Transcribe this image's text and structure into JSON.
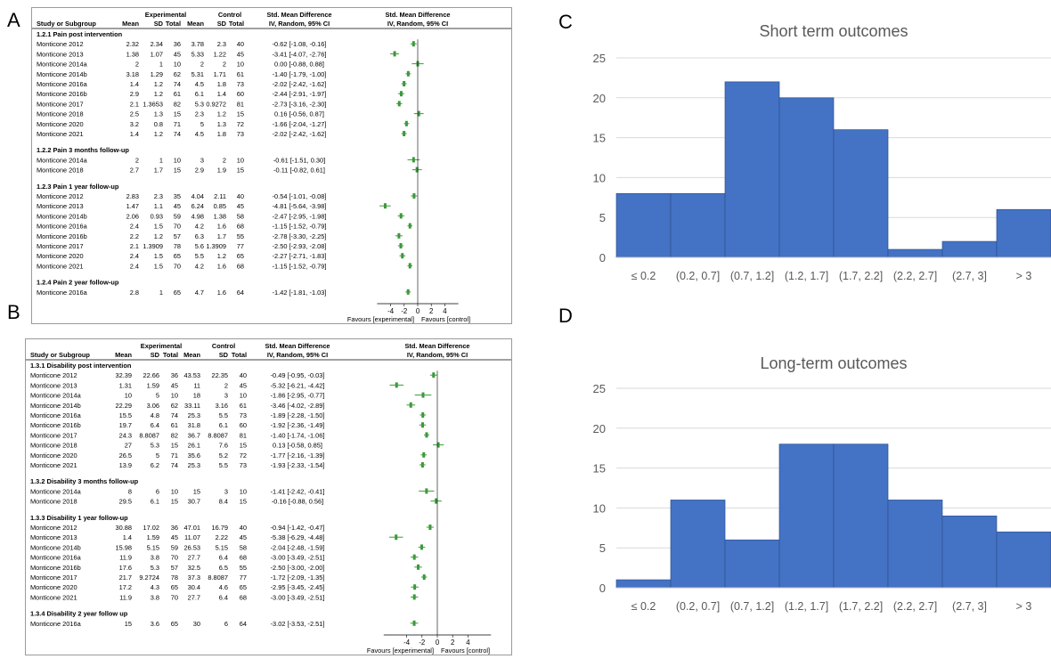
{
  "panels": {
    "a": "A",
    "b": "B",
    "c": "C",
    "d": "D"
  },
  "forest_headers": {
    "experimental": "Experimental",
    "control": "Control",
    "smd": "Std. Mean Difference",
    "smd_sub": "IV, Random, 95% CI",
    "study": "Study or Subgroup",
    "mean": "Mean",
    "sd": "SD",
    "total": "Total"
  },
  "forest_a_footer": {
    "left": "Favours [experimental]",
    "right": "Favours [control]"
  },
  "forest_b_footer": {
    "left": "Favours [experimental]",
    "right": "Favours [control]"
  },
  "histogram_colors": {
    "bar": "#4472C4",
    "grid": "#d9d9d9",
    "text": "#595959"
  },
  "forest_colors": {
    "marker": "#3a9a3a"
  },
  "chart_data": [
    {
      "type": "table",
      "panel": "A",
      "xaxis_ticks": [
        "-4",
        "-2",
        "0",
        "2",
        "4"
      ],
      "xlim": [
        -6,
        6
      ],
      "groups": [
        {
          "title": "1.2.1 Pain post intervention",
          "rows": [
            [
              "Monticone 2012",
              "2.32",
              "2.34",
              "36",
              "3.78",
              "2.3",
              "40",
              "-0.62 [-1.08, -0.16]",
              -0.62,
              -1.08,
              -0.16
            ],
            [
              "Monticone 2013",
              "1.38",
              "1.07",
              "45",
              "5.33",
              "1.22",
              "45",
              "-3.41 [-4.07, -2.76]",
              -3.41,
              -4.07,
              -2.76
            ],
            [
              "Monticone 2014a",
              "2",
              "1",
              "10",
              "2",
              "2",
              "10",
              "0.00 [-0.88, 0.88]",
              0.0,
              -0.88,
              0.88
            ],
            [
              "Monticone 2014b",
              "3.18",
              "1.29",
              "62",
              "5.31",
              "1.71",
              "61",
              "-1.40 [-1.79, -1.00]",
              -1.4,
              -1.79,
              -1.0
            ],
            [
              "Monticone 2016a",
              "1.4",
              "1.2",
              "74",
              "4.5",
              "1.8",
              "73",
              "-2.02 [-2.42, -1.62]",
              -2.02,
              -2.42,
              -1.62
            ],
            [
              "Monticone 2016b",
              "2.9",
              "1.2",
              "61",
              "6.1",
              "1.4",
              "60",
              "-2.44 [-2.91, -1.97]",
              -2.44,
              -2.91,
              -1.97
            ],
            [
              "Monticone 2017",
              "2.1",
              "1.3653",
              "82",
              "5.3",
              "0.9272",
              "81",
              "-2.73 [-3.16, -2.30]",
              -2.73,
              -3.16,
              -2.3
            ],
            [
              "Monticone 2018",
              "2.5",
              "1.3",
              "15",
              "2.3",
              "1.2",
              "15",
              "0.16 [-0.56, 0.87]",
              0.16,
              -0.56,
              0.87
            ],
            [
              "Monticone 2020",
              "3.2",
              "0.8",
              "71",
              "5",
              "1.3",
              "72",
              "-1.66 [-2.04, -1.27]",
              -1.66,
              -2.04,
              -1.27
            ],
            [
              "Monticone 2021",
              "1.4",
              "1.2",
              "74",
              "4.5",
              "1.8",
              "73",
              "-2.02 [-2.42, -1.62]",
              -2.02,
              -2.42,
              -1.62
            ]
          ]
        },
        {
          "title": "1.2.2 Pain 3 months follow-up",
          "rows": [
            [
              "Monticone 2014a",
              "2",
              "1",
              "10",
              "3",
              "2",
              "10",
              "-0.61 [-1.51, 0.30]",
              -0.61,
              -1.51,
              0.3
            ],
            [
              "Monticone 2018",
              "2.7",
              "1.7",
              "15",
              "2.9",
              "1.9",
              "15",
              "-0.11 [-0.82, 0.61]",
              -0.11,
              -0.82,
              0.61
            ]
          ]
        },
        {
          "title": "1.2.3 Pain 1 year follow-up",
          "rows": [
            [
              "Monticone 2012",
              "2.83",
              "2.3",
              "35",
              "4.04",
              "2.11",
              "40",
              "-0.54 [-1.01, -0.08]",
              -0.54,
              -1.01,
              -0.08
            ],
            [
              "Monticone 2013",
              "1.47",
              "1.1",
              "45",
              "6.24",
              "0.85",
              "45",
              "-4.81 [-5.64, -3.98]",
              -4.81,
              -5.64,
              -3.98
            ],
            [
              "Monticone 2014b",
              "2.06",
              "0.93",
              "59",
              "4.98",
              "1.38",
              "58",
              "-2.47 [-2.95, -1.98]",
              -2.47,
              -2.95,
              -1.98
            ],
            [
              "Monticone 2016a",
              "2.4",
              "1.5",
              "70",
              "4.2",
              "1.6",
              "68",
              "-1.15 [-1.52, -0.79]",
              -1.15,
              -1.52,
              -0.79
            ],
            [
              "Monticone 2016b",
              "2.2",
              "1.2",
              "57",
              "6.3",
              "1.7",
              "55",
              "-2.78 [-3.30, -2.25]",
              -2.78,
              -3.3,
              -2.25
            ],
            [
              "Monticone 2017",
              "2.1",
              "1.3909",
              "78",
              "5.6",
              "1.3909",
              "77",
              "-2.50 [-2.93, -2.08]",
              -2.5,
              -2.93,
              -2.08
            ],
            [
              "Monticone 2020",
              "2.4",
              "1.5",
              "65",
              "5.5",
              "1.2",
              "65",
              "-2.27 [-2.71, -1.83]",
              -2.27,
              -2.71,
              -1.83
            ],
            [
              "Monticone 2021",
              "2.4",
              "1.5",
              "70",
              "4.2",
              "1.6",
              "68",
              "-1.15 [-1.52, -0.79]",
              -1.15,
              -1.52,
              -0.79
            ]
          ]
        },
        {
          "title": "1.2.4 Pain 2 year follow-up",
          "rows": [
            [
              "Monticone 2016a",
              "2.8",
              "1",
              "65",
              "4.7",
              "1.6",
              "64",
              "-1.42 [-1.81, -1.03]",
              -1.42,
              -1.81,
              -1.03
            ]
          ]
        }
      ]
    },
    {
      "type": "table",
      "panel": "B",
      "xaxis_ticks": [
        "-4",
        "-2",
        "0",
        "2",
        "4"
      ],
      "xlim": [
        -7,
        7
      ],
      "groups": [
        {
          "title": "1.3.1 Disability post intervention",
          "rows": [
            [
              "Monticone 2012",
              "32.39",
              "22.66",
              "36",
              "43.53",
              "22.35",
              "40",
              "-0.49 [-0.95, -0.03]",
              -0.49,
              -0.95,
              -0.03
            ],
            [
              "Monticone 2013",
              "1.31",
              "1.59",
              "45",
              "11",
              "2",
              "45",
              "-5.32 [-6.21, -4.42]",
              -5.32,
              -6.21,
              -4.42
            ],
            [
              "Monticone 2014a",
              "10",
              "5",
              "10",
              "18",
              "3",
              "10",
              "-1.86 [-2.95, -0.77]",
              -1.86,
              -2.95,
              -0.77
            ],
            [
              "Monticone 2014b",
              "22.29",
              "3.06",
              "62",
              "33.11",
              "3.16",
              "61",
              "-3.46 [-4.02, -2.89]",
              -3.46,
              -4.02,
              -2.89
            ],
            [
              "Monticone 2016a",
              "15.5",
              "4.8",
              "74",
              "25.3",
              "5.5",
              "73",
              "-1.89 [-2.28, -1.50]",
              -1.89,
              -2.28,
              -1.5
            ],
            [
              "Monticone 2016b",
              "19.7",
              "6.4",
              "61",
              "31.8",
              "6.1",
              "60",
              "-1.92 [-2.36, -1.49]",
              -1.92,
              -2.36,
              -1.49
            ],
            [
              "Monticone 2017",
              "24.3",
              "8.8087",
              "82",
              "36.7",
              "8.8087",
              "81",
              "-1.40 [-1.74, -1.06]",
              -1.4,
              -1.74,
              -1.06
            ],
            [
              "Monticone 2018",
              "27",
              "5.3",
              "15",
              "26.1",
              "7.6",
              "15",
              "0.13 [-0.58, 0.85]",
              0.13,
              -0.58,
              0.85
            ],
            [
              "Monticone 2020",
              "26.5",
              "5",
              "71",
              "35.6",
              "5.2",
              "72",
              "-1.77 [-2.16, -1.39]",
              -1.77,
              -2.16,
              -1.39
            ],
            [
              "Monticone 2021",
              "13.9",
              "6.2",
              "74",
              "25.3",
              "5.5",
              "73",
              "-1.93 [-2.33, -1.54]",
              -1.93,
              -2.33,
              -1.54
            ]
          ]
        },
        {
          "title": "1.3.2 Disability 3 months follow-up",
          "rows": [
            [
              "Monticone 2014a",
              "8",
              "6",
              "10",
              "15",
              "3",
              "10",
              "-1.41 [-2.42, -0.41]",
              -1.41,
              -2.42,
              -0.41
            ],
            [
              "Monticone 2018",
              "29.5",
              "6.1",
              "15",
              "30.7",
              "8.4",
              "15",
              "-0.16 [-0.88, 0.56]",
              -0.16,
              -0.88,
              0.56
            ]
          ]
        },
        {
          "title": "1.3.3 Disability 1 year follow-up",
          "rows": [
            [
              "Monticone 2012",
              "30.88",
              "17.02",
              "36",
              "47.01",
              "16.79",
              "40",
              "-0.94 [-1.42, -0.47]",
              -0.94,
              -1.42,
              -0.47
            ],
            [
              "Monticone 2013",
              "1.4",
              "1.59",
              "45",
              "11.07",
              "2.22",
              "45",
              "-5.38 [-6.29, -4.48]",
              -5.38,
              -6.29,
              -4.48
            ],
            [
              "Monticone 2014b",
              "15.98",
              "5.15",
              "59",
              "26.53",
              "5.15",
              "58",
              "-2.04 [-2.48, -1.59]",
              -2.04,
              -2.48,
              -1.59
            ],
            [
              "Monticone 2016a",
              "11.9",
              "3.8",
              "70",
              "27.7",
              "6.4",
              "68",
              "-3.00 [-3.49, -2.51]",
              -3.0,
              -3.49,
              -2.51
            ],
            [
              "Monticone 2016b",
              "17.6",
              "5.3",
              "57",
              "32.5",
              "6.5",
              "55",
              "-2.50 [-3.00, -2.00]",
              -2.5,
              -3.0,
              -2.0
            ],
            [
              "Monticone 2017",
              "21.7",
              "9.2724",
              "78",
              "37.3",
              "8.8087",
              "77",
              "-1.72 [-2.09, -1.35]",
              -1.72,
              -2.09,
              -1.35
            ],
            [
              "Monticone 2020",
              "17.2",
              "4.3",
              "65",
              "30.4",
              "4.6",
              "65",
              "-2.95 [-3.45, -2.45]",
              -2.95,
              -3.45,
              -2.45
            ],
            [
              "Monticone 2021",
              "11.9",
              "3.8",
              "70",
              "27.7",
              "6.4",
              "68",
              "-3.00 [-3.49, -2.51]",
              -3.0,
              -3.49,
              -2.51
            ]
          ]
        },
        {
          "title": "1.3.4 Disability 2 year follow up",
          "rows": [
            [
              "Monticone 2016a",
              "15",
              "3.6",
              "65",
              "30",
              "6",
              "64",
              "-3.02 [-3.53, -2.51]",
              -3.02,
              -3.53,
              -2.51
            ]
          ]
        }
      ]
    },
    {
      "type": "bar",
      "panel": "C",
      "title": "Short term  outcomes",
      "categories": [
        "≤ 0.2",
        "(0.2, 0.7]",
        "(0.7, 1.2]",
        "(1.2, 1.7]",
        "(1.7, 2.2]",
        "(2.2, 2.7]",
        "(2.7, 3]",
        "> 3"
      ],
      "values": [
        8,
        8,
        22,
        20,
        16,
        1,
        2,
        6
      ],
      "ylim": [
        0,
        25
      ],
      "yticks": [
        0,
        5,
        10,
        15,
        20,
        25
      ],
      "grid": true
    },
    {
      "type": "bar",
      "panel": "D",
      "title": "Long-term outcomes",
      "categories": [
        "≤ 0.2",
        "(0.2, 0.7]",
        "(0.7, 1.2]",
        "(1.2, 1.7]",
        "(1.7, 2.2]",
        "(2.2, 2.7]",
        "(2.7, 3]",
        "> 3"
      ],
      "values": [
        1,
        11,
        6,
        18,
        18,
        11,
        9,
        7
      ],
      "ylim": [
        0,
        25
      ],
      "yticks": [
        0,
        5,
        10,
        15,
        20,
        25
      ],
      "grid": true
    }
  ]
}
